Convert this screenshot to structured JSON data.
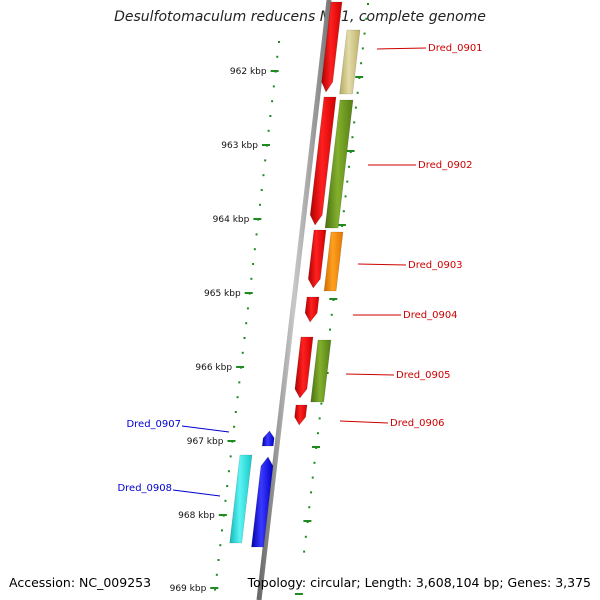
{
  "title": "Desulfotomaculum reducens MI-1, complete genome",
  "accession_text": "Accession: NC_009253",
  "summary_text": "Topology: circular; Length: 3,608,104 bp; Genes: 3,375",
  "scale": {
    "unit": "kbp",
    "labels": [
      "962 kbp",
      "963 kbp",
      "964 kbp",
      "965 kbp",
      "966 kbp",
      "967 kbp",
      "968 kbp",
      "969 kbp"
    ],
    "tick_color": "#1f8a1f"
  },
  "colors": {
    "forward_gene": "#ff0000",
    "reverse_gene": "#1a1aff",
    "label_right": "#cc0000",
    "label_left": "#0000cc",
    "backbone": "#9a9a9a"
  },
  "genes": [
    {
      "id": "Dred_0901",
      "side": "right",
      "cds_color": "#ff0000",
      "feature_color": "#cfc48a"
    },
    {
      "id": "Dred_0902",
      "side": "right",
      "cds_color": "#ff0000",
      "feature_color": "#6b9a1e"
    },
    {
      "id": "Dred_0903",
      "side": "right",
      "cds_color": "#ff0000",
      "feature_color": "#ff9000"
    },
    {
      "id": "Dred_0904",
      "side": "right",
      "cds_color": "#ff0000",
      "feature_color": ""
    },
    {
      "id": "Dred_0905",
      "side": "right",
      "cds_color": "#ff0000",
      "feature_color": "#6b9a1e"
    },
    {
      "id": "Dred_0906",
      "side": "right",
      "cds_color": "#ff0000",
      "feature_color": ""
    },
    {
      "id": "Dred_0907",
      "side": "left",
      "cds_color": "#1a1aff",
      "feature_color": ""
    },
    {
      "id": "Dred_0908",
      "side": "left",
      "cds_color": "#1a1aff",
      "feature_color": "#22e5e5"
    }
  ]
}
